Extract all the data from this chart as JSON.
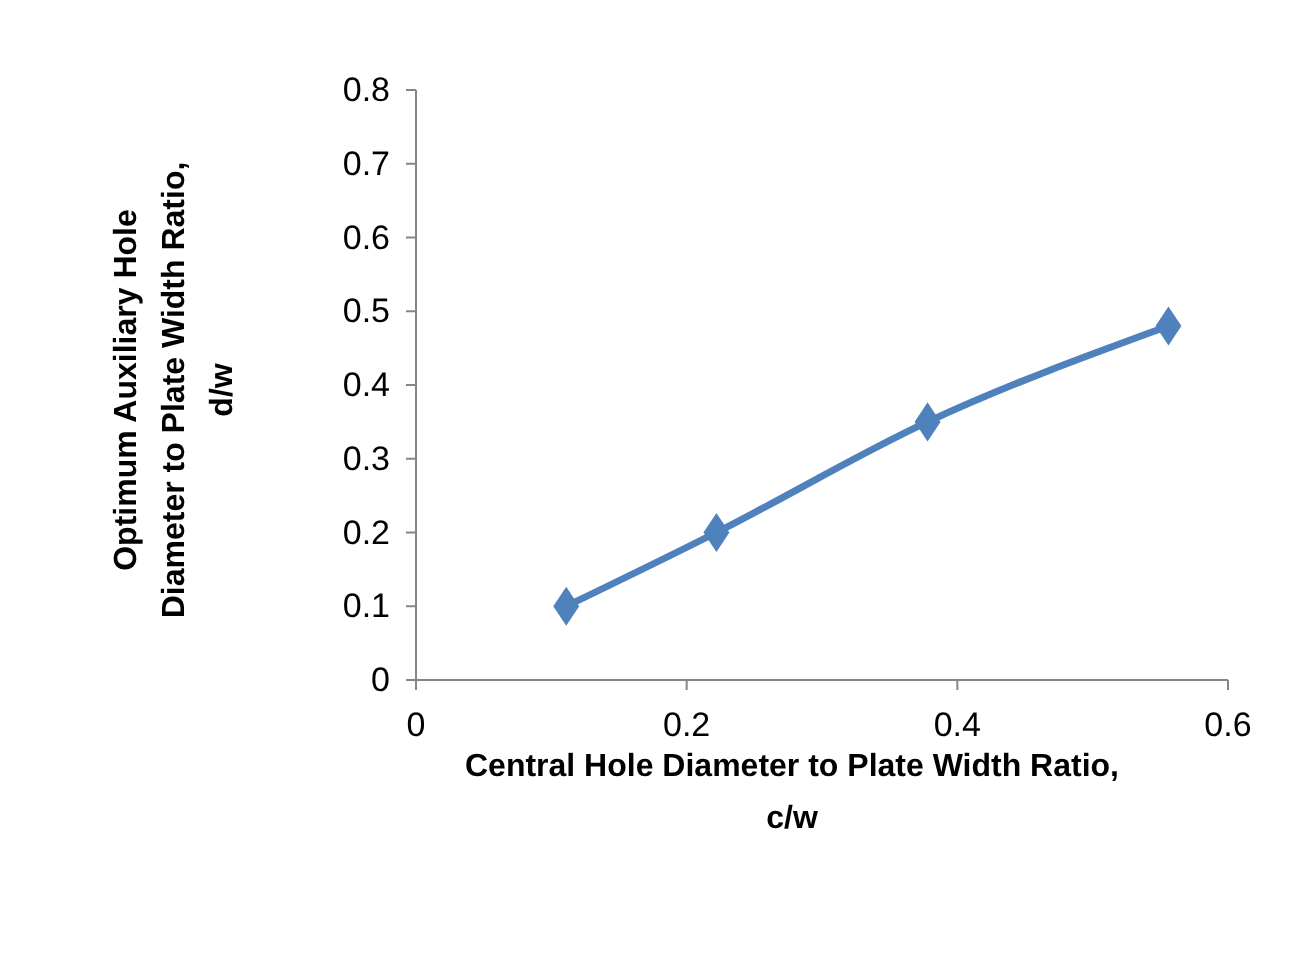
{
  "chart_data": {
    "type": "line",
    "xlabel": "Central Hole Diameter to Plate Width Ratio, c/w",
    "ylabel": "Optimum Auxiliary Hole Diameter to Plate Width Ratio, d/w",
    "x": [
      0.111,
      0.222,
      0.378,
      0.556
    ],
    "series": [
      {
        "color": "#4f81bd",
        "values": [
          0.1,
          0.2,
          0.35,
          0.48
        ]
      }
    ],
    "xlim": [
      0,
      0.6
    ],
    "xticks": [
      0,
      0.2,
      0.4,
      0.6
    ],
    "ylim": [
      0,
      0.8
    ],
    "yticks": [
      0,
      0.1,
      0.2,
      0.3,
      0.4,
      0.5,
      0.6,
      0.7,
      0.8
    ],
    "grid": false,
    "marker": "diamond",
    "line_style": "solid"
  }
}
